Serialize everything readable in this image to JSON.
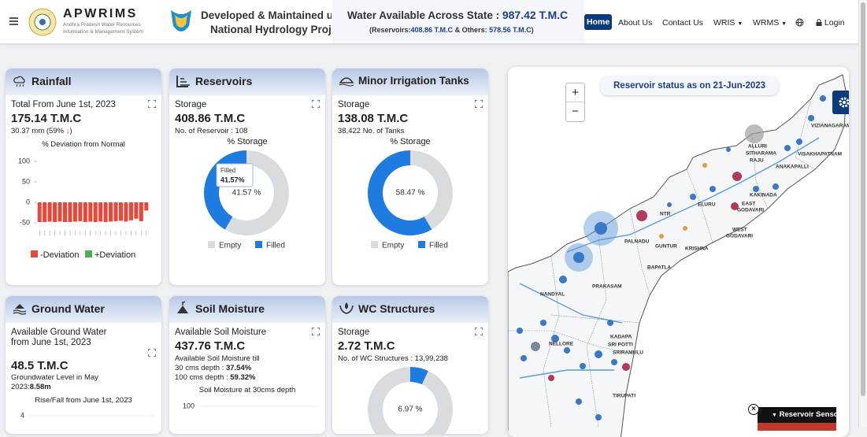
{
  "header": {
    "brand": "APWRIMS",
    "brand_line1": "Andhra Pradesh Water Resources",
    "brand_line2": "Information & Management System",
    "banner_line1": "Developed & Maintained u",
    "banner_line2": "National Hydrology Proje",
    "water_title": "Water Available Across State :",
    "water_value": "987.42 T.M.C",
    "detail_open": "(Reservoirs:",
    "detail_reservoirs": "408.86 T.M.C",
    "detail_mid": " & Others: ",
    "detail_others": "578.56 T.M.C",
    "detail_close": ")"
  },
  "nav": [
    "Home",
    "About Us",
    "Contact Us",
    "WRIS",
    "WRMS",
    "Login"
  ],
  "cards": {
    "rainfall": {
      "title": "Rainfall",
      "label": "Total From June 1st, 2023",
      "value": "175.14 T.M.C",
      "sub": "30.37 mm (59%",
      "sub_close": ")",
      "chart": {
        "type": "bar",
        "title": "% Deviation from Normal",
        "ylim": [
          -75,
          110
        ],
        "yticks": [
          100,
          50,
          0,
          -50
        ],
        "series": [
          {
            "name": "-Deviation",
            "color": "#e8473c",
            "values": [
              -48,
              -48,
              -47,
              -48,
              -47,
              -48,
              -48,
              -47,
              -46,
              -48,
              -47,
              -48,
              -47,
              -48,
              -47,
              -46,
              -45,
              -47,
              -44,
              -40,
              -46,
              -20
            ]
          },
          {
            "name": "+Deviation",
            "color": "#4caf50",
            "values": [
              null,
              null,
              null,
              null,
              null,
              null,
              null,
              null,
              null,
              null,
              null,
              null,
              null,
              null,
              null,
              null,
              null,
              null,
              null,
              null,
              null,
              null
            ]
          }
        ]
      }
    },
    "reservoirs": {
      "title": "Reservoirs",
      "label": "Storage",
      "value": "408.86 T.M.C",
      "sub": "No. of Reservoir : 108",
      "chart": {
        "type": "pie",
        "title": "% Storage",
        "series": [
          {
            "name": "Empty",
            "color": "#d9dcdf",
            "value": 58.43
          },
          {
            "name": "Filled",
            "color": "#1e7be0",
            "value": 41.57,
            "value_label": "41.57 %"
          }
        ],
        "tooltip": {
          "title": "Filled",
          "value_label": "41.57%"
        }
      }
    },
    "minor": {
      "title": "Minor Irrigation Tanks",
      "label": "Storage",
      "value": "138.08 T.M.C",
      "sub": "38,422 No. of Tanks",
      "chart": {
        "type": "pie",
        "title": "% Storage",
        "series": [
          {
            "name": "Empty",
            "color": "#d9dcdf",
            "value": 41.53
          },
          {
            "name": "Filled",
            "color": "#1e7be0",
            "value": 58.47,
            "value_label": "58.47 %"
          }
        ]
      }
    },
    "ground": {
      "title": "Ground Water",
      "label1": "Available Ground Water",
      "label2": "from June 1st, 2023",
      "value": "48.5 T.M.C",
      "level_label": "Groundwater Level in May",
      "level_year": "2023:",
      "level_value": "8.58m",
      "chart": {
        "title": "Rise/Fall from June 1st, 2023",
        "yticks": [
          4
        ]
      }
    },
    "soil": {
      "title": "Soil Moisture",
      "label": "Available Soil Moisture",
      "value": "437.76 T.M.C",
      "till": "Available Soil Moisture till",
      "d30_label": "30 cms depth : ",
      "d30_value": "37.54%",
      "d100_label": "100 cms depth : ",
      "d100_value": "59.32%",
      "chart": {
        "title": "Soil Moisture at 30cms depth",
        "yticks": [
          100
        ]
      }
    },
    "wc": {
      "title": "WC Structures",
      "label": "Storage",
      "value": "2.72 T.M.C",
      "sub": "No. of WC Structures : 13,99,238",
      "chart": {
        "type": "pie",
        "series": [
          {
            "name": "Filled",
            "color": "#1e7be0",
            "value": 6.97,
            "value_label": "6.97 %"
          },
          {
            "name": "Empty",
            "color": "#d9dcdf",
            "value": 93.03
          }
        ]
      }
    }
  },
  "map": {
    "status": "Reservoir status as on 21-Jun-2023",
    "zoom_in": "+",
    "zoom_out": "−",
    "legend": "Reservoir Sensors",
    "labels": [
      "VIZIANAGARAM",
      "ALLURI",
      "SITHARAMA",
      "RAJU",
      "VISAKHAPATNAM",
      "ANAKAPALLI",
      "KAKINADA",
      "EAST",
      "GODAVARI",
      "WEST",
      "GODAVARI",
      "ELURU",
      "NTR",
      "PALNADU",
      "GUNTUR",
      "KRISHNA",
      "BAPATLA",
      "PRAKASAM",
      "NANDYAL",
      "KADAPA",
      "SRI POTTI",
      "SRIRAMULU",
      "NELLORE",
      "TIRUPATI"
    ]
  }
}
